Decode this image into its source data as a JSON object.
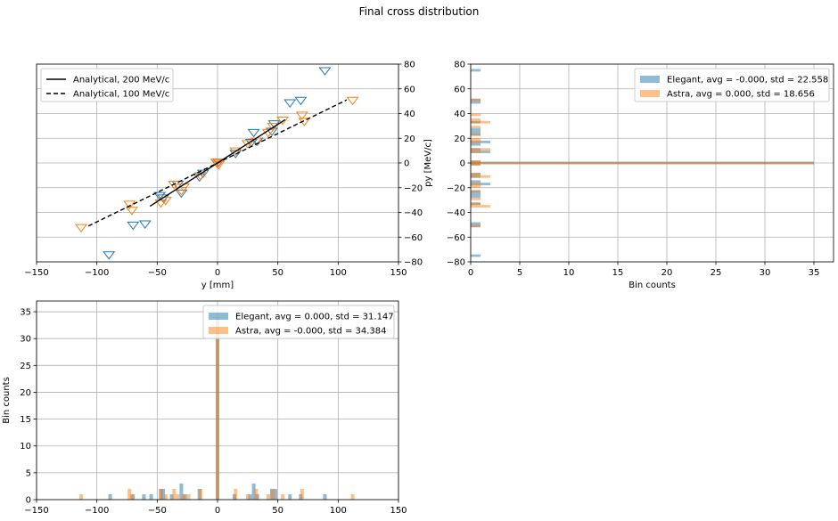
{
  "figure": {
    "title": "Final cross distribution"
  },
  "chart_data": [
    {
      "type": "scatter",
      "name": "phase-space",
      "xlabel": "y [mm]",
      "ylabel": "py [MeV/c]",
      "xlim": [
        -150,
        150
      ],
      "ylim": [
        -80,
        80
      ],
      "xticks": [
        -150,
        -100,
        -50,
        0,
        50,
        100,
        150
      ],
      "yticks": [
        -80,
        -60,
        -40,
        -20,
        0,
        20,
        40,
        60,
        80
      ],
      "yaxis_side": "right",
      "grid": true,
      "legend_position": "top-left",
      "colors": {
        "elegant": "#1f77b4",
        "astra": "#ff7f0e",
        "line": "#000000"
      },
      "lines": [
        {
          "name": "Analytical, 200 MeV/c",
          "style": "solid",
          "x": [
            -56,
            56
          ],
          "y": [
            -35,
            35
          ]
        },
        {
          "name": "Analytical, 100 MeV/c",
          "style": "dashed",
          "x": [
            -107,
            107
          ],
          "y": [
            -51,
            51
          ]
        }
      ],
      "series": [
        {
          "marker": "triangle-down",
          "color": "#1f77b4",
          "x": [
            -90,
            -70,
            -60,
            -48,
            -45,
            -33,
            -30,
            -15,
            -12,
            0,
            1,
            15,
            28,
            30,
            33,
            45,
            47,
            60,
            69,
            89
          ],
          "y": [
            -74,
            -50,
            -49,
            -26,
            -28,
            -17,
            -24,
            -11,
            -8,
            0,
            1,
            8,
            17,
            25,
            18,
            26,
            32,
            49,
            51,
            75
          ]
        },
        {
          "marker": "triangle-down",
          "color": "#ff7f0e",
          "x": [
            -113,
            -73,
            -71,
            -47,
            -43,
            -36,
            -30,
            -28,
            -14,
            0,
            -1,
            1,
            15,
            25,
            32,
            42,
            46,
            54,
            70,
            72,
            112
          ],
          "y": [
            -52,
            -33,
            -38,
            -32,
            -30,
            -17,
            -22,
            -19,
            -10,
            0,
            1,
            -1,
            10,
            16,
            18,
            25,
            30,
            35,
            39,
            34,
            51
          ]
        }
      ]
    },
    {
      "type": "bar",
      "name": "py-histogram",
      "orientation": "horizontal",
      "xlabel": "Bin counts",
      "ylabel": "",
      "xlim": [
        0,
        37
      ],
      "ylim": [
        -80,
        80
      ],
      "xticks": [
        0,
        5,
        10,
        15,
        20,
        25,
        30,
        35
      ],
      "yticks": [
        -80,
        -60,
        -40,
        -20,
        0,
        20,
        40,
        60,
        80
      ],
      "bin_width": 2,
      "grid": true,
      "legend_position": "top-right",
      "series": [
        {
          "name": "Elegant, avg = -0.000, std = 22.558",
          "color": "#1f77b4",
          "bin_centers": [
            -75,
            -51,
            -49,
            -33,
            -27,
            -25,
            -23,
            -17,
            -15,
            -11,
            -9,
            -1,
            0,
            1,
            9,
            11,
            15,
            17,
            23,
            25,
            27,
            33,
            49,
            51,
            75
          ],
          "counts": [
            1,
            1,
            1,
            1,
            1,
            1,
            1,
            2,
            1,
            1,
            1,
            1,
            35,
            1,
            2,
            1,
            1,
            2,
            1,
            1,
            1,
            1,
            1,
            1,
            1
          ]
        },
        {
          "name": "Astra, avg = 0.000, std = 18.656",
          "color": "#ff7f0e",
          "bin_centers": [
            -51,
            -35,
            -33,
            -29,
            -23,
            -19,
            -17,
            -11,
            -9,
            -1,
            0,
            1,
            9,
            11,
            17,
            19,
            23,
            29,
            33,
            35,
            39,
            51
          ],
          "counts": [
            1,
            2,
            1,
            1,
            1,
            1,
            1,
            2,
            1,
            1,
            35,
            1,
            1,
            2,
            1,
            1,
            1,
            1,
            2,
            1,
            1,
            1
          ]
        }
      ]
    },
    {
      "type": "bar",
      "name": "y-histogram",
      "orientation": "vertical",
      "xlabel": "",
      "ylabel": "Bin counts",
      "xlim": [
        -150,
        150
      ],
      "ylim": [
        0,
        37
      ],
      "xticks": [
        -150,
        -100,
        -50,
        0,
        50,
        100,
        150
      ],
      "yticks": [
        0,
        5,
        10,
        15,
        20,
        25,
        30,
        35
      ],
      "bin_width": 3,
      "grid": true,
      "legend_position": "top-right",
      "series": [
        {
          "name": "Elegant, avg = 0.000, std = 31.147",
          "color": "#1f77b4",
          "bin_centers": [
            -89,
            -70,
            -61,
            -55,
            -47,
            -45,
            -38,
            -30,
            -27,
            -15,
            0,
            14,
            27,
            30,
            33,
            45,
            48,
            60,
            69,
            89
          ],
          "counts": [
            1,
            1,
            1,
            1,
            2,
            2,
            1,
            3,
            1,
            2,
            34,
            1,
            1,
            3,
            1,
            2,
            2,
            1,
            1,
            1
          ]
        },
        {
          "name": "Astra, avg = -0.000, std = 34.384",
          "color": "#ff7f0e",
          "bin_centers": [
            -113,
            -73,
            -71,
            -47,
            -43,
            -36,
            -33,
            -28,
            -24,
            -14,
            0,
            15,
            25,
            32,
            42,
            46,
            54,
            70,
            112
          ],
          "counts": [
            1,
            2,
            1,
            2,
            1,
            2,
            1,
            1,
            1,
            2,
            35,
            2,
            1,
            2,
            1,
            2,
            1,
            2,
            1
          ]
        }
      ]
    }
  ]
}
